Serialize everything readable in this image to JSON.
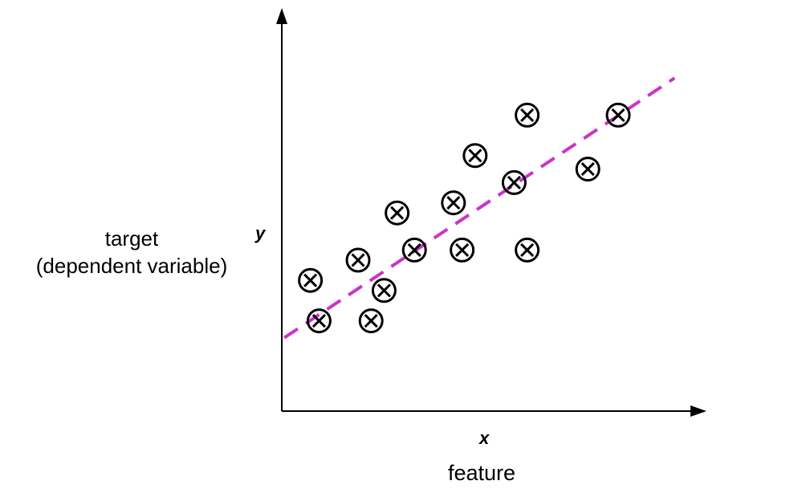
{
  "chart_data": {
    "type": "scatter",
    "title": "",
    "x_axis": {
      "symbol": "x",
      "label": "feature",
      "ticks": [],
      "range": [
        0,
        10
      ]
    },
    "y_axis": {
      "symbol": "y",
      "label_lines": [
        "target",
        "(dependent variable)"
      ],
      "ticks": [],
      "range": [
        0,
        10
      ]
    },
    "points": [
      {
        "x": 0.9,
        "y": 3.9
      },
      {
        "x": 1.1,
        "y": 2.7
      },
      {
        "x": 2.0,
        "y": 4.5
      },
      {
        "x": 2.3,
        "y": 2.7
      },
      {
        "x": 2.6,
        "y": 3.6
      },
      {
        "x": 2.9,
        "y": 5.9
      },
      {
        "x": 3.3,
        "y": 4.8
      },
      {
        "x": 4.2,
        "y": 6.2
      },
      {
        "x": 4.4,
        "y": 4.8
      },
      {
        "x": 4.7,
        "y": 7.6
      },
      {
        "x": 5.6,
        "y": 6.8
      },
      {
        "x": 5.9,
        "y": 8.8
      },
      {
        "x": 5.9,
        "y": 4.8
      },
      {
        "x": 7.3,
        "y": 7.2
      },
      {
        "x": 8.0,
        "y": 8.8
      }
    ],
    "fit_line": {
      "style": "dashed",
      "color": "#cc33cc",
      "x": [
        0.3,
        9.3
      ],
      "y": [
        2.2,
        9.9
      ]
    },
    "marker": "circled-x",
    "grid": false,
    "legend": "none"
  }
}
